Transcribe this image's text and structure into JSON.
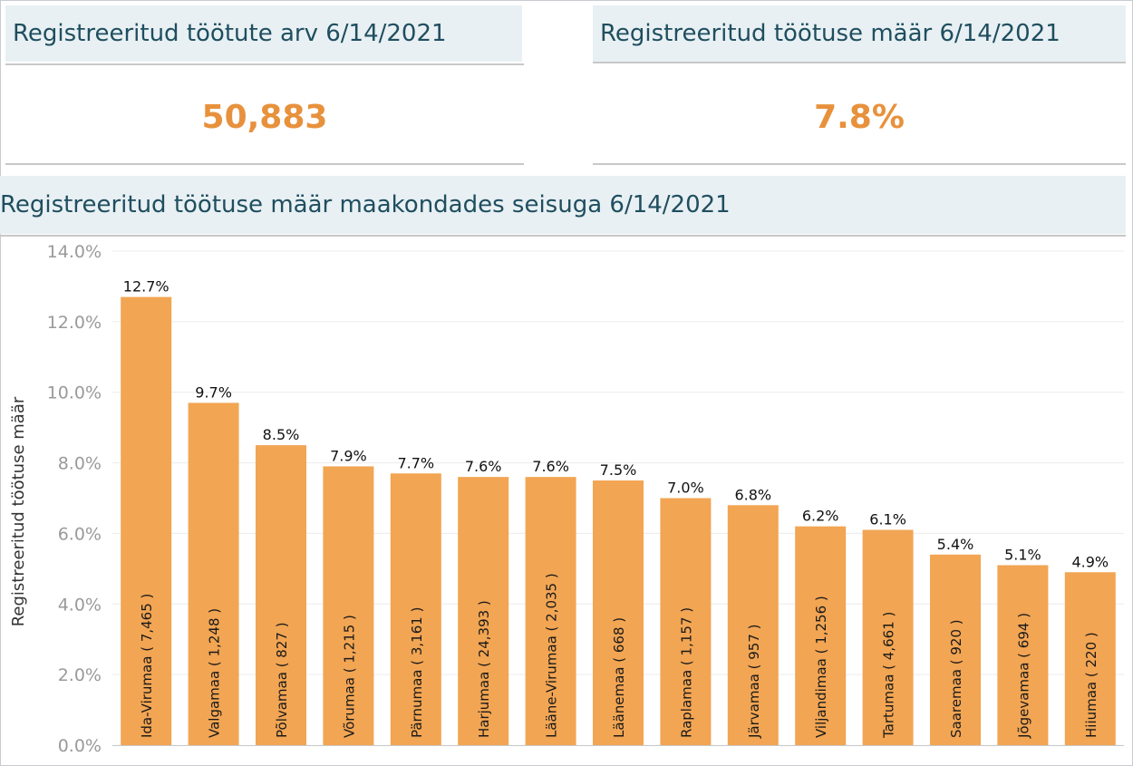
{
  "kpis": {
    "count": {
      "title": "Registreeritud töötute arv 6/14/2021",
      "value": "50,883"
    },
    "rate": {
      "title": "Registreeritud töötuse määr 6/14/2021",
      "value": "7.8%"
    }
  },
  "chart": {
    "title": "Registreeritud töötuse määr maakondades seisuga 6/14/2021"
  },
  "colors": {
    "bar": "#f2a553",
    "value": "#e8913c",
    "title": "#1f4e5f",
    "header_bg": "#e8f0f3"
  },
  "chart_data": {
    "type": "bar",
    "title": "Registreeritud töötuse määr maakondades seisuga 6/14/2021",
    "xlabel": "",
    "ylabel": "Registreeritud töötuse määr",
    "ylim": [
      0,
      14
    ],
    "yticks": [
      "0.0%",
      "2.0%",
      "4.0%",
      "6.0%",
      "8.0%",
      "10.0%",
      "12.0%",
      "14.0%"
    ],
    "grid": true,
    "categories": [
      "Ida-Virumaa ( 7,465 )",
      "Valgamaa ( 1,248 )",
      "Põlvamaa ( 827 )",
      "Võrumaa ( 1,215 )",
      "Pärnumaa ( 3,161 )",
      "Harjumaa ( 24,393 )",
      "Lääne-Virumaa ( 2,035 )",
      "Läänemaa ( 668 )",
      "Raplamaa ( 1,157 )",
      "Järvamaa ( 957 )",
      "Viljandimaa ( 1,256 )",
      "Tartumaa ( 4,661 )",
      "Saaremaa ( 920 )",
      "Jõgevamaa ( 694 )",
      "Hiiumaa ( 220 )"
    ],
    "values": [
      12.7,
      9.7,
      8.5,
      7.9,
      7.7,
      7.6,
      7.6,
      7.5,
      7.0,
      6.8,
      6.2,
      6.1,
      5.4,
      5.1,
      4.9
    ],
    "labels": [
      "12.7%",
      "9.7%",
      "8.5%",
      "7.9%",
      "7.7%",
      "7.6%",
      "7.6%",
      "7.5%",
      "7.0%",
      "6.8%",
      "6.2%",
      "6.1%",
      "5.4%",
      "5.1%",
      "4.9%"
    ]
  }
}
